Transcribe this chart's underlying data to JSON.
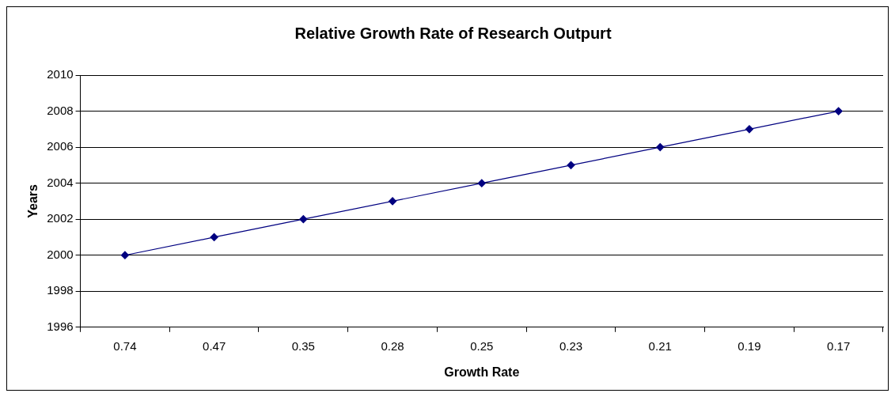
{
  "chart_data": {
    "type": "line",
    "title": "Relative Growth Rate of Research Outpurt",
    "xlabel": "Growth Rate",
    "ylabel": "Years",
    "categories": [
      "0.74",
      "0.47",
      "0.35",
      "0.28",
      "0.25",
      "0.23",
      "0.21",
      "0.19",
      "0.17"
    ],
    "series": [
      {
        "color": "#000080",
        "values": [
          2000,
          2001,
          2002,
          2003,
          2004,
          2005,
          2006,
          2007,
          2008
        ]
      }
    ],
    "ylim": [
      1996,
      2010
    ],
    "yticks": [
      1996,
      1998,
      2000,
      2002,
      2004,
      2006,
      2008,
      2010
    ],
    "grid": "y",
    "legend": false,
    "marker": "diamond",
    "line_style": "solid"
  }
}
